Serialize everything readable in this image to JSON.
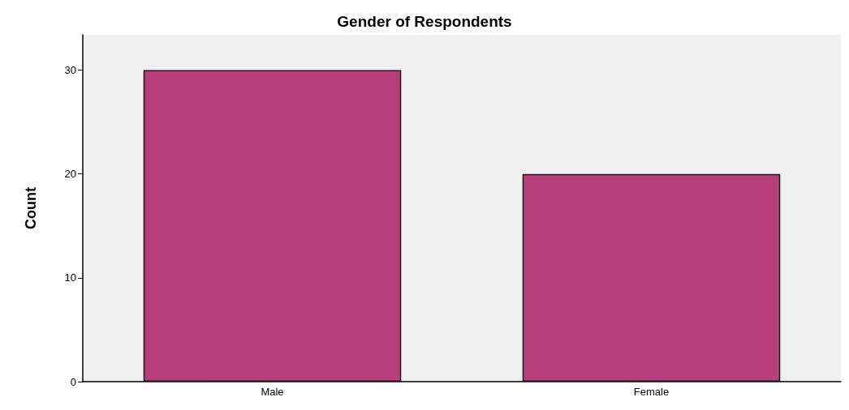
{
  "chart_data": {
    "type": "bar",
    "title": "Gender of Respondents",
    "ylabel": "Count",
    "categories": [
      "Male",
      "Female"
    ],
    "values": [
      30,
      20
    ],
    "color": "#b83e7a",
    "ylim": [
      0,
      33.4
    ],
    "yticks": [
      0,
      10,
      20,
      30
    ],
    "grid": false
  }
}
